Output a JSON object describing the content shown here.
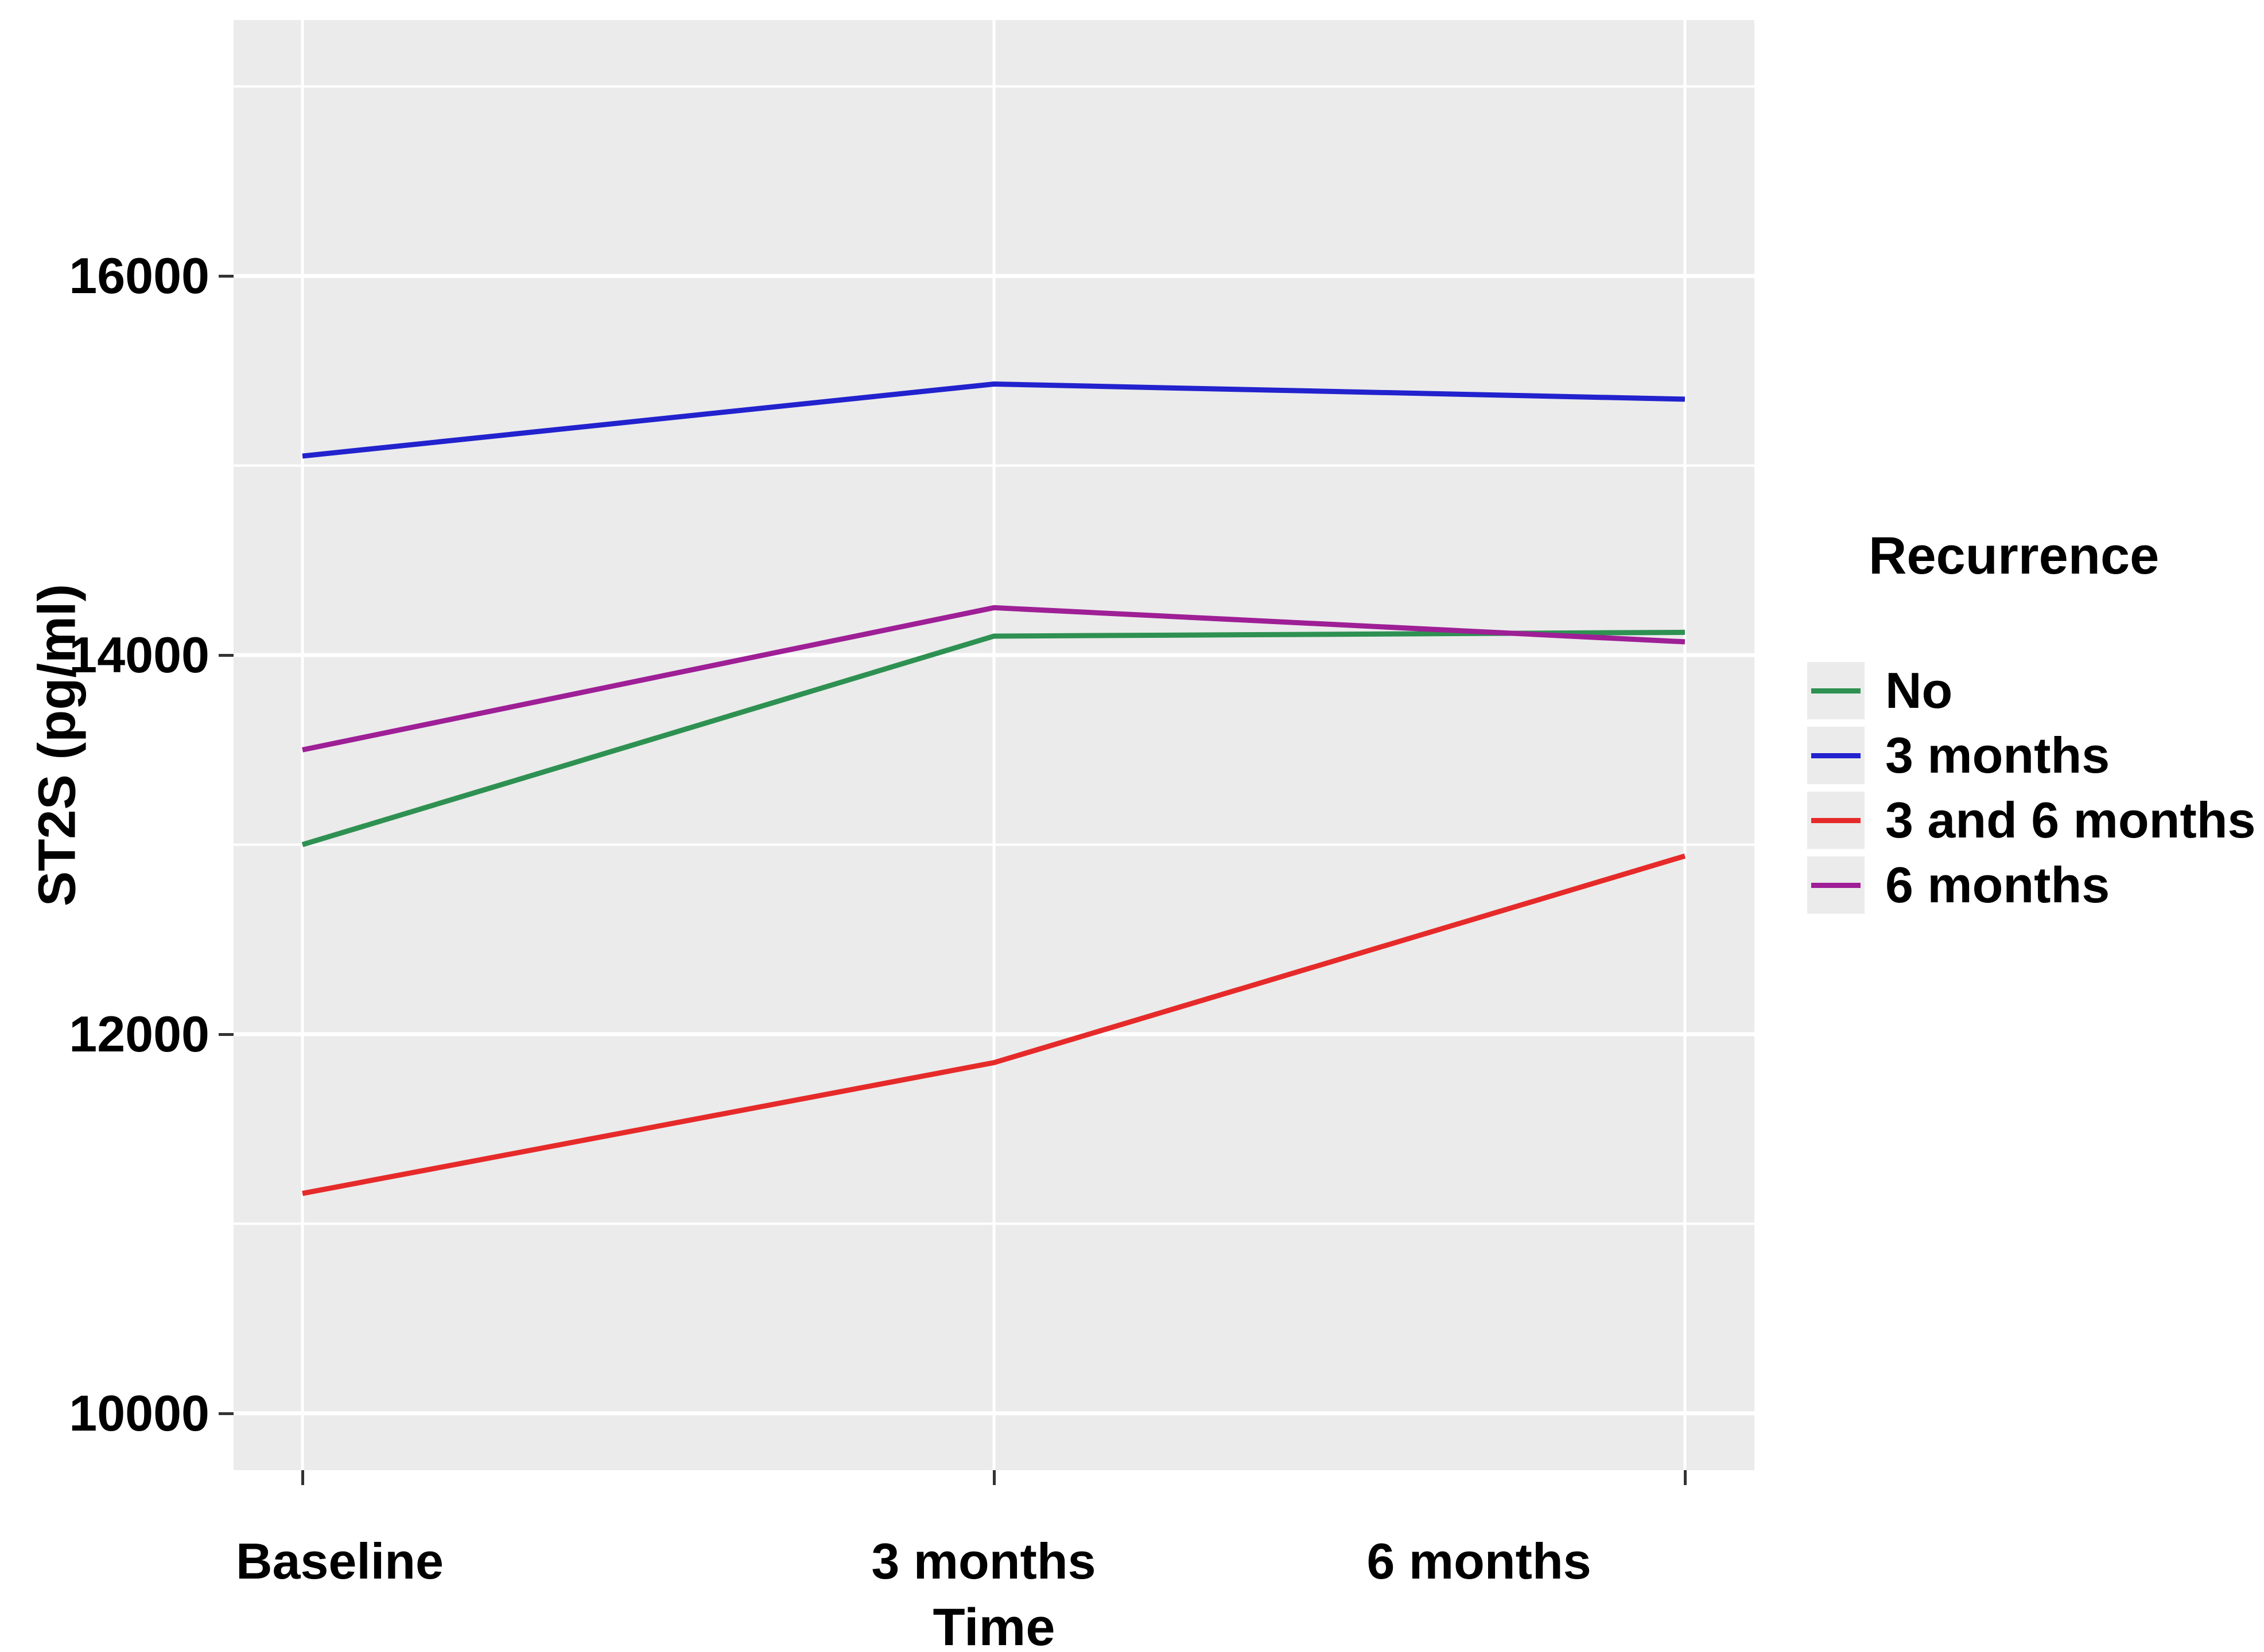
{
  "figure": {
    "background": "#FFFFFF",
    "panel_background": "#EBEBEB",
    "gridline_color": "#FFFFFF",
    "tick_color": "#333333",
    "text_color": "#000000"
  },
  "chart_data": {
    "type": "line",
    "categories": [
      "Baseline",
      "3 months",
      "6 months"
    ],
    "series": [
      {
        "name": "No",
        "color": "#2E9152",
        "values": [
          13000,
          14100,
          14120
        ]
      },
      {
        "name": "3 months",
        "color": "#2222CE",
        "values": [
          15050,
          15430,
          15350
        ]
      },
      {
        "name": "3 and 6 months",
        "color": "#E62A2A",
        "values": [
          11160,
          11850,
          12940
        ]
      },
      {
        "name": "6 months",
        "color": "#9E1F96",
        "values": [
          13500,
          14250,
          14070
        ]
      }
    ],
    "title": "",
    "xlabel": "Time",
    "ylabel": "ST2S (pg/ml)",
    "ylim": [
      9700,
      17350
    ],
    "y_major_ticks": [
      16000,
      14000,
      12000,
      10000
    ],
    "y_minor_ticks": [
      17000,
      15000,
      13000,
      11000
    ],
    "grid": "on",
    "legend": {
      "title": "Recurrence",
      "position": "right",
      "entries": [
        "No",
        "3 months",
        "3 and 6 months",
        "6 months"
      ]
    }
  }
}
